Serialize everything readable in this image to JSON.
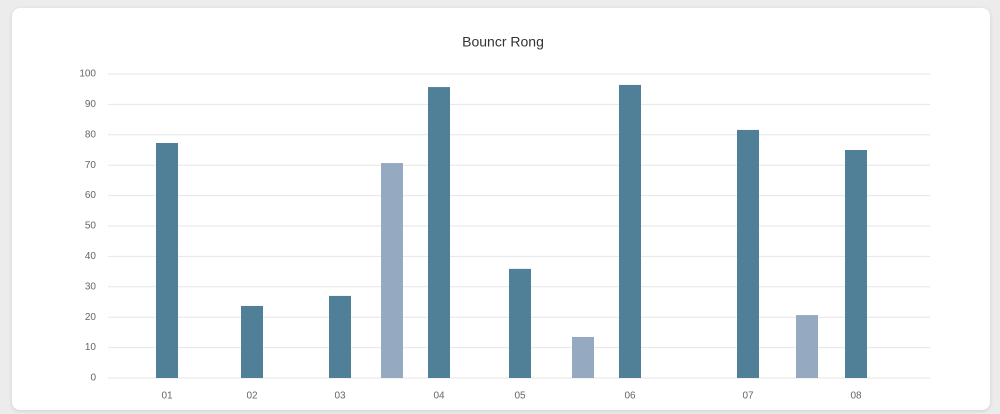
{
  "chart_data": {
    "type": "bar",
    "title": "Bouncr Rong",
    "categories": [
      "01",
      "02",
      "03",
      null,
      "04",
      "05",
      null,
      "06",
      "07",
      null,
      "08"
    ],
    "values": [
      77.3,
      23.7,
      27,
      70.7,
      95.7,
      35.9,
      13.5,
      96.4,
      81.6,
      20.7,
      75
    ],
    "colors": [
      "#4f8098",
      "#4f8098",
      "#4f8098",
      "#95aac0",
      "#4f8098",
      "#4f8098",
      "#95aac0",
      "#4f8098",
      "#4f8098",
      "#95aac0",
      "#4f8098"
    ],
    "ylim": [
      0,
      100
    ],
    "yticks": [
      0,
      10,
      20,
      30,
      40,
      50,
      60,
      70,
      80,
      90,
      100
    ],
    "grid": true
  }
}
